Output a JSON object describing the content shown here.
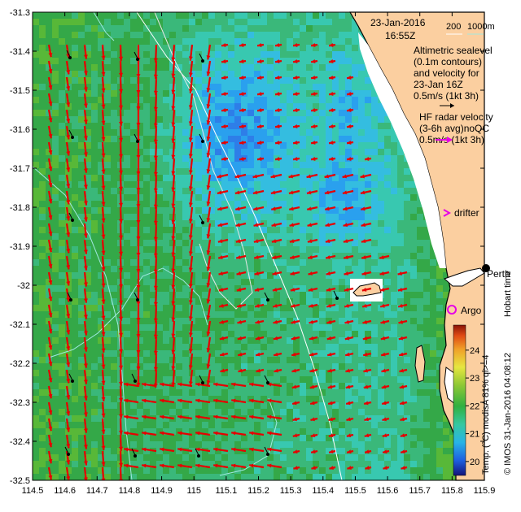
{
  "map": {
    "date": "23-Jan-2016",
    "time": "16:55Z",
    "depth_legend": {
      "label_200": "200",
      "label_1000": "1000m"
    },
    "altimetry_text": [
      "Altimetric sealevel",
      "(0.1m contours)",
      "and velocity for",
      "23-Jan 16Z",
      "0.5m/s (1kt 3h)"
    ],
    "hf_radar_text": [
      "HF radar velocity",
      "(3-6h avg)noQC",
      "0.5m/s (1kt 3h)"
    ],
    "drifter_label": "drifter",
    "argo_label": "Argo",
    "city_label": "Perth",
    "hobart_label": "Hobart time",
    "credit_label": "© IMOS 31-Jan-2016 04:08:12",
    "colorbar_title": "Temp. (°C) modisA 81% ql>=4",
    "colorbar_ticks": [
      "20",
      "21",
      "22",
      "23",
      "24"
    ],
    "colorbar_range": [
      19.5,
      24.9
    ],
    "x_ticks": [
      "114.5",
      "114.6",
      "114.7",
      "114.8",
      "114.9",
      "115",
      "115.1",
      "115.2",
      "115.3",
      "115.4",
      "115.5",
      "115.6",
      "115.7",
      "115.8",
      "115.9"
    ],
    "y_ticks": [
      "-31.3",
      "-31.4",
      "-31.5",
      "-31.6",
      "-31.7",
      "-31.8",
      "-31.9",
      "-32",
      "-32.1",
      "-32.2",
      "-32.3",
      "-32.4",
      "-32.5"
    ],
    "lon_range": [
      114.5,
      115.9
    ],
    "lat_range": [
      -32.5,
      -31.3
    ],
    "colors": {
      "land": "#fbcfa0",
      "arrow": "#e60000",
      "hf_arrow": "#e600e6",
      "isobath": "#a0e8e0",
      "sea_level_contour": "#e8e8e8"
    }
  }
}
